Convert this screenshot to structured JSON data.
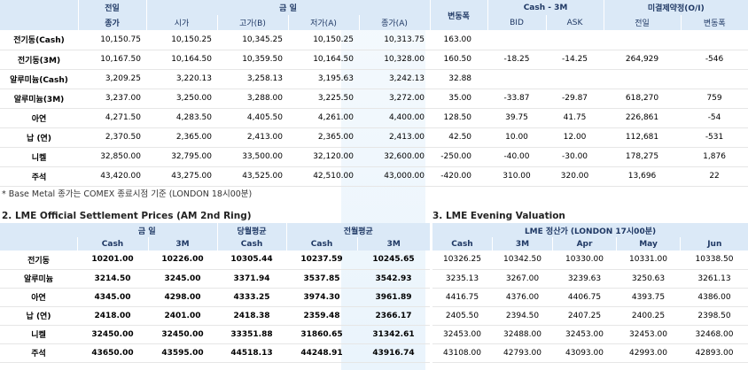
{
  "top": {
    "col_headers": {
      "prev_line1": "전일",
      "prev_line2": "종가",
      "today": "금        일",
      "open": "시가",
      "high": "고가(B)",
      "low": "저가(A)",
      "close": "종가(A)",
      "change": "변동폭",
      "cash3m": "Cash - 3M",
      "bid": "BID",
      "ask": "ASK",
      "oi": "미결제약정(O/I)",
      "oi_prev": "전일",
      "oi_change": "변동폭"
    },
    "rows": [
      {
        "name": "전기동(Cash)",
        "prev": "10,150.75",
        "open": "10,150.25",
        "high": "10,345.25",
        "low": "10,150.25",
        "close": "10,313.75",
        "change": "163.00",
        "bid": "",
        "ask": "",
        "oi": "",
        "oi_change": ""
      },
      {
        "name": "전기동(3M)",
        "prev": "10,167.50",
        "open": "10,164.50",
        "high": "10,359.50",
        "low": "10,164.50",
        "close": "10,328.00",
        "change": "160.50",
        "bid": "-18.25",
        "ask": "-14.25",
        "oi": "264,929",
        "oi_change": "-546"
      },
      {
        "name": "알루미늄(Cash)",
        "prev": "3,209.25",
        "open": "3,220.13",
        "high": "3,258.13",
        "low": "3,195.63",
        "close": "3,242.13",
        "change": "32.88",
        "bid": "",
        "ask": "",
        "oi": "",
        "oi_change": ""
      },
      {
        "name": "알루미늄(3M)",
        "prev": "3,237.00",
        "open": "3,250.00",
        "high": "3,288.00",
        "low": "3,225.50",
        "close": "3,272.00",
        "change": "35.00",
        "bid": "-33.87",
        "ask": "-29.87",
        "oi": "618,270",
        "oi_change": "759"
      },
      {
        "name": "아연",
        "prev": "4,271.50",
        "open": "4,283.50",
        "high": "4,405.50",
        "low": "4,261.00",
        "close": "4,400.00",
        "change": "128.50",
        "bid": "39.75",
        "ask": "41.75",
        "oi": "226,861",
        "oi_change": "-54"
      },
      {
        "name": "납 (연)",
        "prev": "2,370.50",
        "open": "2,365.00",
        "high": "2,413.00",
        "low": "2,365.00",
        "close": "2,413.00",
        "change": "42.50",
        "bid": "10.00",
        "ask": "12.00",
        "oi": "112,681",
        "oi_change": "-531"
      },
      {
        "name": "니켈",
        "prev": "32,850.00",
        "open": "32,795.00",
        "high": "33,500.00",
        "low": "32,120.00",
        "close": "32,600.00",
        "change": "-250.00",
        "bid": "-40.00",
        "ask": "-30.00",
        "oi": "178,275",
        "oi_change": "1,876"
      },
      {
        "name": "주석",
        "prev": "43,420.00",
        "open": "43,275.00",
        "high": "43,525.00",
        "low": "42,510.00",
        "close": "43,000.00",
        "change": "-420.00",
        "bid": "310.00",
        "ask": "320.00",
        "oi": "13,696",
        "oi_change": "22"
      }
    ]
  },
  "footnote": "* Base Metal 종가는 COMEX 종료시점 기준 (LONDON 18시00분)",
  "settlement": {
    "title": "2. LME Official Settlement Prices (AM 2nd Ring)",
    "h_today": "금        일",
    "h_month_avg": "당월평균",
    "h_prev_month_avg": "전월평균",
    "sub": [
      "Cash",
      "3M",
      "Cash",
      "Cash",
      "3M"
    ],
    "rows": [
      {
        "name": "전기동",
        "v": [
          "10201.00",
          "10226.00",
          "10305.44",
          "10237.59",
          "10245.65"
        ]
      },
      {
        "name": "알루미늄",
        "v": [
          "3214.50",
          "3245.00",
          "3371.94",
          "3537.85",
          "3542.93"
        ]
      },
      {
        "name": "아연",
        "v": [
          "4345.00",
          "4298.00",
          "4333.25",
          "3974.30",
          "3961.89"
        ]
      },
      {
        "name": "납 (연)",
        "v": [
          "2418.00",
          "2401.00",
          "2418.38",
          "2359.48",
          "2366.17"
        ]
      },
      {
        "name": "니켈",
        "v": [
          "32450.00",
          "32450.00",
          "33351.88",
          "31860.65",
          "31342.61"
        ]
      },
      {
        "name": "주석",
        "v": [
          "43650.00",
          "43595.00",
          "44518.13",
          "44248.91",
          "43916.74"
        ]
      }
    ]
  },
  "evening": {
    "title": "3. LME Evening Valuation",
    "header": "LME 정산가 (LONDON 17시00분)",
    "sub": [
      "Cash",
      "3M",
      "Apr",
      "May",
      "Jun"
    ],
    "rows": [
      {
        "v": [
          "10326.25",
          "10342.50",
          "10330.00",
          "10331.00",
          "10338.50"
        ]
      },
      {
        "v": [
          "3235.13",
          "3267.00",
          "3239.63",
          "3250.63",
          "3261.13"
        ]
      },
      {
        "v": [
          "4416.75",
          "4376.00",
          "4406.75",
          "4393.75",
          "4386.00"
        ]
      },
      {
        "v": [
          "2405.50",
          "2394.50",
          "2407.25",
          "2400.25",
          "2398.50"
        ]
      },
      {
        "v": [
          "32453.00",
          "32488.00",
          "32453.00",
          "32453.00",
          "32468.00"
        ]
      },
      {
        "v": [
          "43108.00",
          "42793.00",
          "43093.00",
          "42993.00",
          "42893.00"
        ]
      }
    ]
  }
}
